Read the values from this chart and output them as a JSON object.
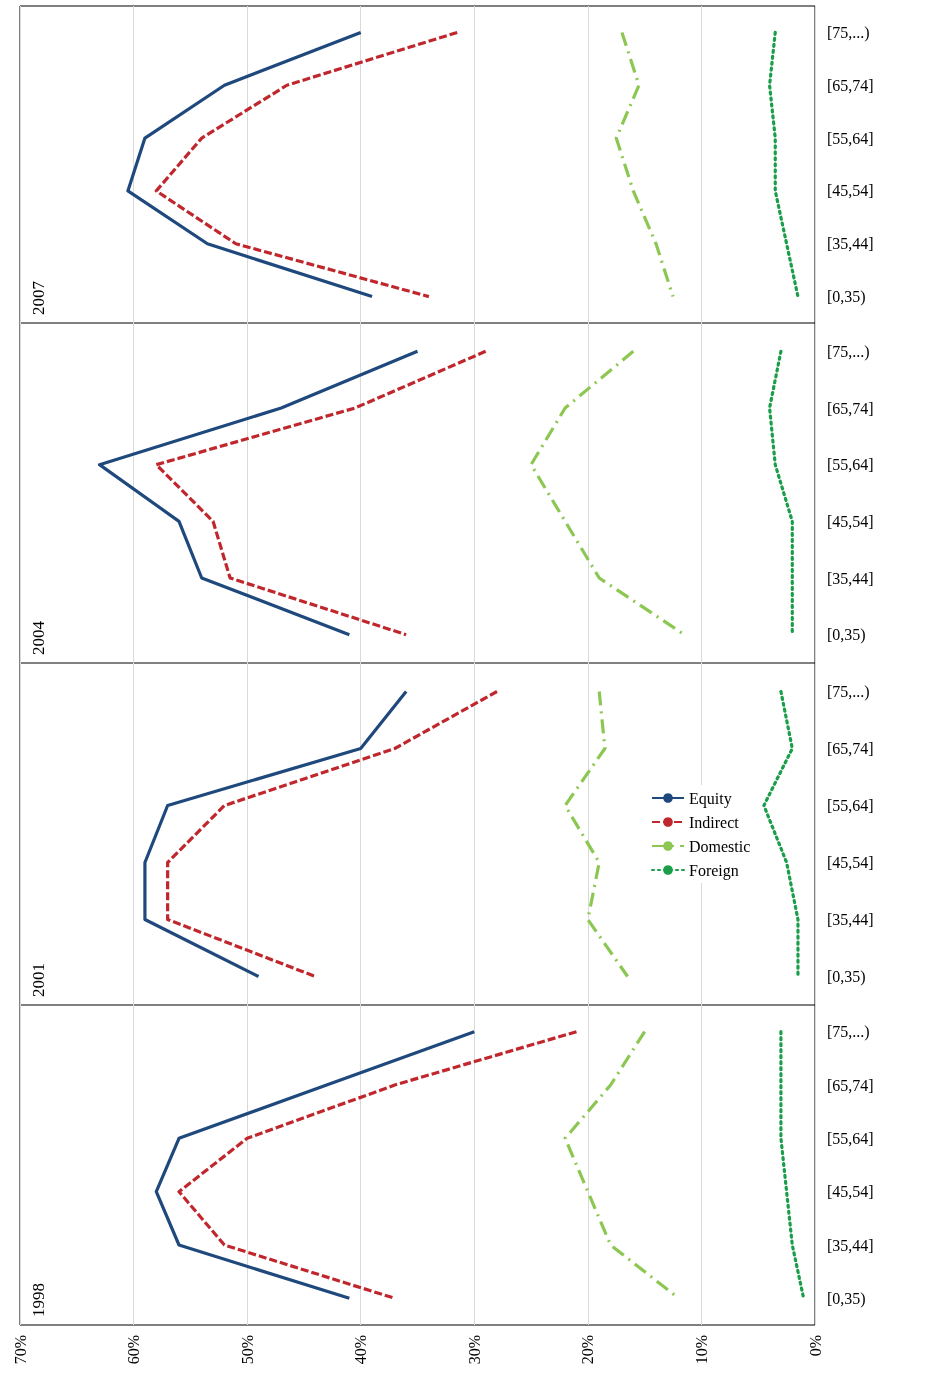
{
  "chart_data": [
    {
      "type": "line",
      "title": "1998",
      "orientation": "horizontal",
      "categories": [
        "[75,...)",
        "[65,74]",
        "[55,64]",
        "[45,54]",
        "[35,44]",
        "[0,35)"
      ],
      "xlim": [
        70,
        0
      ],
      "xticks": [
        {
          "value": 0,
          "label": "0%"
        },
        {
          "value": 10,
          "label": "10%"
        },
        {
          "value": 20,
          "label": "20%"
        },
        {
          "value": 30,
          "label": "30%"
        },
        {
          "value": 40,
          "label": "40%"
        },
        {
          "value": 50,
          "label": "50%"
        },
        {
          "value": 60,
          "label": "60%"
        },
        {
          "value": 70,
          "label": "70%"
        }
      ],
      "grid": "x",
      "marker": "none",
      "series": [
        {
          "color": "#1f497d",
          "line_style": "solid",
          "values": [
            30,
            43,
            56,
            58,
            56,
            41
          ]
        },
        {
          "color": "#c0272d",
          "line_style": "dashed",
          "values": [
            21,
            37,
            50,
            56,
            52,
            37
          ]
        },
        {
          "color": "#8cc751",
          "line_style": "dashdot",
          "values": [
            15,
            18,
            22,
            20,
            18,
            12
          ]
        },
        {
          "color": "#1a9e4a",
          "line_style": "dotted",
          "values": [
            3,
            3,
            3,
            2.5,
            2,
            1
          ]
        }
      ]
    },
    {
      "type": "line",
      "title": "2001",
      "orientation": "horizontal",
      "categories": [
        "[75,...)",
        "[65,74]",
        "[55,64]",
        "[45,54]",
        "[35,44]",
        "[0,35)"
      ],
      "xlim": [
        70,
        0
      ],
      "xticks": [
        {
          "value": 0,
          "label": null
        },
        {
          "value": 10,
          "label": null
        },
        {
          "value": 20,
          "label": null
        },
        {
          "value": 30,
          "label": null
        },
        {
          "value": 40,
          "label": null
        },
        {
          "value": 50,
          "label": null
        },
        {
          "value": 60,
          "label": null
        },
        {
          "value": 70,
          "label": null
        }
      ],
      "grid": "x",
      "marker": "none",
      "tick_labels": "y",
      "legend": "right",
      "series": [
        {
          "name": "Equity",
          "color": "#1f497d",
          "line_style": "solid",
          "values": [
            36,
            40,
            57,
            59,
            59,
            49
          ]
        },
        {
          "name": "Indirect",
          "color": "#c0272d",
          "line_style": "dashed",
          "values": [
            28,
            37,
            52,
            57,
            57,
            44
          ]
        },
        {
          "name": "Domestic",
          "color": "#8cc751",
          "line_style": "dashdot",
          "values": [
            19,
            18.5,
            22,
            19,
            20,
            16.5
          ]
        },
        {
          "name": "Foreign",
          "color": "#1a9e4a",
          "line_style": "dotted",
          "values": [
            3,
            2,
            4.5,
            2.5,
            1.5,
            1.5
          ]
        }
      ]
    },
    {
      "type": "line",
      "title": "2004",
      "orientation": "horizontal",
      "categories": [
        "[75,...)",
        "[65,74]",
        "[55,64]",
        "[45,54]",
        "[35,44]",
        "[0,35)"
      ],
      "xlim": [
        70,
        0
      ],
      "xticks": [
        {
          "value": 0,
          "label": null
        },
        {
          "value": 10,
          "label": null
        },
        {
          "value": 20,
          "label": null
        },
        {
          "value": 30,
          "label": null
        },
        {
          "value": 40,
          "label": null
        },
        {
          "value": 50,
          "label": null
        },
        {
          "value": 60,
          "label": null
        },
        {
          "value": 70,
          "label": null
        }
      ],
      "grid": "x",
      "marker": "none",
      "tick_labels": "y",
      "series": [
        {
          "color": "#1f497d",
          "line_style": "solid",
          "values": [
            35,
            47,
            63,
            56,
            54,
            41
          ]
        },
        {
          "color": "#c0272d",
          "line_style": "dashed",
          "values": [
            29,
            40.5,
            58,
            53,
            51.5,
            36
          ]
        },
        {
          "color": "#8cc751",
          "line_style": "dashdot",
          "values": [
            16,
            22,
            25,
            22,
            19,
            11.5
          ]
        },
        {
          "color": "#1a9e4a",
          "line_style": "dotted",
          "values": [
            3,
            4,
            3.5,
            2,
            2,
            2
          ]
        }
      ]
    },
    {
      "type": "line",
      "title": "2007",
      "orientation": "horizontal",
      "categories": [
        "[75,...)",
        "[65,74]",
        "[55,64]",
        "[45,54]",
        "[35,44]",
        "[0,35)"
      ],
      "xlim": [
        70,
        0
      ],
      "xticks": [
        {
          "value": 0,
          "label": null
        },
        {
          "value": 10,
          "label": null
        },
        {
          "value": 20,
          "label": null
        },
        {
          "value": 30,
          "label": null
        },
        {
          "value": 40,
          "label": null
        },
        {
          "value": 50,
          "label": null
        },
        {
          "value": 60,
          "label": null
        },
        {
          "value": 70,
          "label": null
        }
      ],
      "grid": "x",
      "marker": "none",
      "tick_labels": "y",
      "series": [
        {
          "color": "#1f497d",
          "line_style": "solid",
          "values": [
            40,
            52,
            59,
            60.5,
            53.5,
            39
          ]
        },
        {
          "color": "#c0272d",
          "line_style": "dashed",
          "values": [
            31.5,
            46.5,
            54,
            58,
            51,
            34
          ]
        },
        {
          "color": "#8cc751",
          "line_style": "dashdot",
          "values": [
            17,
            15.5,
            17.5,
            16,
            14,
            12.5
          ]
        },
        {
          "color": "#1a9e4a",
          "line_style": "dotted",
          "values": [
            3.5,
            4,
            3.5,
            3.5,
            2.5,
            1.5
          ]
        }
      ]
    }
  ]
}
